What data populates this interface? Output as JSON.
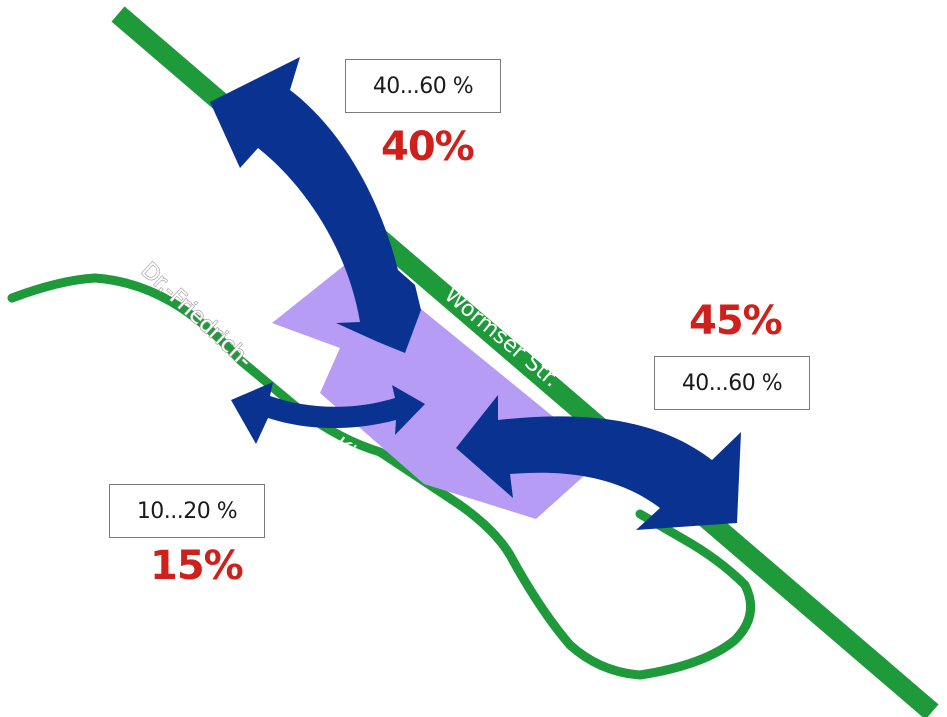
{
  "map": {
    "streets": {
      "wormser": "Wormser Str.",
      "friedrich_part1": "Dr.-Friedrich-",
      "friedrich_part2": "Kirchhoff-Straße"
    },
    "directions": [
      {
        "id": "north",
        "range": "40...60 %",
        "share": "40%"
      },
      {
        "id": "southeast",
        "range": "40...60 %",
        "share": "45%"
      },
      {
        "id": "west",
        "range": "10...20 %",
        "share": "15%"
      }
    ]
  },
  "colors": {
    "road": "#1e9a3a",
    "site_area": "#b69cf5",
    "arrow": "#0a3291",
    "share_text": "#d0201c"
  }
}
